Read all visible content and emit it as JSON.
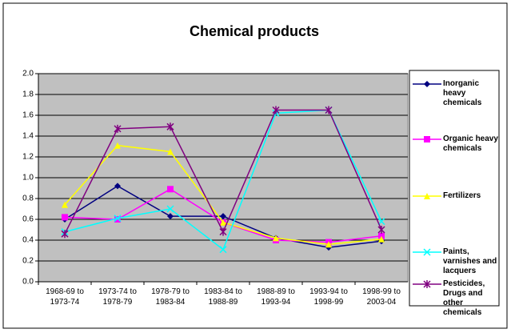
{
  "chart_data": {
    "type": "line",
    "title": "Chemical products",
    "categories": [
      "1968-69 to 1973-74",
      "1973-74 to 1978-79",
      "1978-79 to 1983-84",
      "1983-84 to 1988-89",
      "1988-89 to 1993-94",
      "1993-94 to 1998-99",
      "1998-99 to 2003-04"
    ],
    "series": [
      {
        "name": "Inorganic heavy chemicals",
        "color": "#000080",
        "marker": "diamond",
        "values": [
          0.6,
          0.92,
          0.63,
          0.63,
          0.42,
          0.33,
          0.39
        ]
      },
      {
        "name": "Organic heavy chemicals",
        "color": "#ff00ff",
        "marker": "square",
        "values": [
          0.62,
          0.6,
          0.89,
          0.57,
          0.4,
          0.38,
          0.44
        ]
      },
      {
        "name": "Fertilizers",
        "color": "#ffff00",
        "marker": "triangle",
        "values": [
          0.74,
          1.31,
          1.25,
          0.57,
          0.42,
          0.36,
          0.41
        ]
      },
      {
        "name": "Paints, varnishes and lacquers",
        "color": "#00ffff",
        "marker": "x",
        "values": [
          0.48,
          0.61,
          0.7,
          0.31,
          1.62,
          1.65,
          0.58
        ]
      },
      {
        "name": "Pesticides, Drugs and other chemicals",
        "color": "#800080",
        "marker": "star",
        "values": [
          0.46,
          1.47,
          1.49,
          0.48,
          1.65,
          1.65,
          0.5
        ]
      }
    ],
    "ylim": [
      0,
      2
    ],
    "yticks": [
      {
        "value": 0,
        "label": "0.0"
      },
      0.2,
      0.4,
      0.6,
      0.8,
      {
        "value": 1,
        "label": "1.0"
      },
      1.2,
      1.4,
      1.6,
      1.8,
      {
        "value": 2,
        "label": "2.0"
      }
    ],
    "grid": true,
    "legend": "right"
  }
}
